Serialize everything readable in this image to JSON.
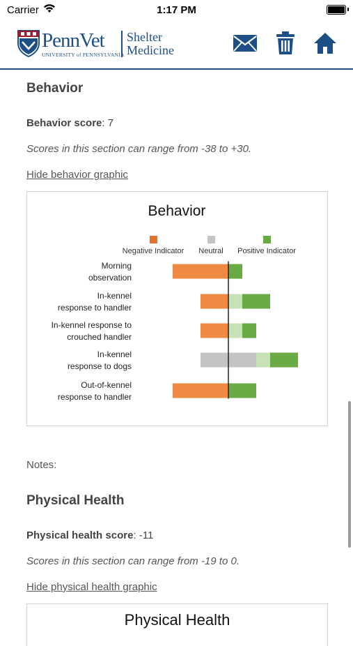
{
  "status_bar": {
    "carrier": "Carrier",
    "time": "1:17 PM"
  },
  "header": {
    "logo_brand": "PennVet",
    "logo_university": "UNIVERSITY of PENNSYLVANIA",
    "logo_sub_line1": "Shelter",
    "logo_sub_line2": "Medicine",
    "icons": [
      "mail-icon",
      "trash-icon",
      "home-icon"
    ],
    "brand_color": "#1d4f86"
  },
  "behavior": {
    "title": "Behavior",
    "score_label": "Behavior score",
    "score_value": ": 7",
    "range_text": "Scores in this section can range from -38 to +30.",
    "toggle_link": "Hide behavior graphic"
  },
  "notes_label": "Notes:",
  "physical_health": {
    "title": "Physical Health",
    "score_label": "Physical health score",
    "score_value": ": -11",
    "range_text": "Scores in this section can range from -19 to 0.",
    "toggle_link": "Hide physical health graphic",
    "chart_title": "Physical Health"
  },
  "chart_data": [
    {
      "type": "bar",
      "orientation": "horizontal-diverging",
      "title": "Behavior",
      "legend": [
        {
          "name": "Negative Indicator",
          "color": "#e8702a"
        },
        {
          "name": "Neutral",
          "color": "#c4c4c4"
        },
        {
          "name": "Positive Indicator",
          "color": "#6aaa45"
        }
      ],
      "legend_position": "top",
      "colors": {
        "negative": "#ef8a44",
        "neutral": "#c4c4c4",
        "positive_light": "#c8e2b8",
        "positive": "#6aaa45"
      },
      "categories": [
        [
          "Morning",
          "observation"
        ],
        [
          "In-kennel",
          "response to handler"
        ],
        [
          "In-kennel response to",
          "crouched handler"
        ],
        [
          "In-kennel",
          "response to dogs"
        ],
        [
          "Out-of-kennel",
          "response to handler"
        ]
      ],
      "rows": [
        {
          "negative": 4,
          "neutral": 0,
          "positive_light": 0,
          "positive": 1
        },
        {
          "negative": 2,
          "neutral": 0,
          "positive_light": 1,
          "positive": 2
        },
        {
          "negative": 2,
          "neutral": 0,
          "positive_light": 1,
          "positive": 1
        },
        {
          "negative": 0,
          "neutral": 2,
          "positive_light": 1,
          "positive": 2
        },
        {
          "negative": 4,
          "neutral": 0,
          "positive_light": 0,
          "positive": 2
        }
      ],
      "xlim": [
        -4,
        5
      ]
    }
  ]
}
